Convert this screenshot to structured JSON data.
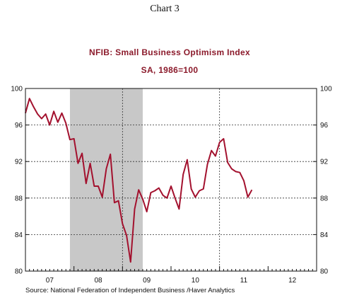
{
  "chart_label": "Chart 3",
  "chart_data": {
    "type": "line",
    "title": "NFIB: Small Business Optimism Index",
    "subtitle": "SA, 1986=100",
    "source": "Source:  National Federation of Independent Business /Haver Analytics",
    "xlabel": "",
    "ylabel": "",
    "ylim": [
      80,
      100
    ],
    "yticks": [
      80,
      84,
      88,
      92,
      96,
      100
    ],
    "ytick_labels": [
      "80",
      "84",
      "88",
      "92",
      "96",
      "100"
    ],
    "x_range": [
      "2007-01",
      "2012-12"
    ],
    "x_tick_labels": [
      {
        "label": "07",
        "year": 2007
      },
      {
        "label": "08",
        "year": 2008
      },
      {
        "label": "09",
        "year": 2009
      },
      {
        "label": "10",
        "year": 2010
      },
      {
        "label": "11",
        "year": 2011
      },
      {
        "label": "12",
        "year": 2012
      }
    ],
    "vertical_gridlines_at": [
      "2009-01",
      "2011-01"
    ],
    "grid": "dashed",
    "recession_shading": {
      "start": "2007-12",
      "end": "2009-06",
      "color": "#c8c8c8"
    },
    "line_color": "#a3112e",
    "series": [
      {
        "x": [
          "2007-01",
          "2007-02",
          "2007-03",
          "2007-04",
          "2007-05",
          "2007-06",
          "2007-07",
          "2007-08",
          "2007-09",
          "2007-10",
          "2007-11",
          "2007-12",
          "2008-01",
          "2008-02",
          "2008-03",
          "2008-04",
          "2008-05",
          "2008-06",
          "2008-07",
          "2008-08",
          "2008-09",
          "2008-10",
          "2008-11",
          "2008-12",
          "2009-01",
          "2009-02",
          "2009-03",
          "2009-04",
          "2009-05",
          "2009-06",
          "2009-07",
          "2009-08",
          "2009-09",
          "2009-10",
          "2009-11",
          "2009-12",
          "2010-01",
          "2010-02",
          "2010-03",
          "2010-04",
          "2010-05",
          "2010-06",
          "2010-07",
          "2010-08",
          "2010-09",
          "2010-10",
          "2010-11",
          "2010-12",
          "2011-01",
          "2011-02",
          "2011-03",
          "2011-04",
          "2011-05",
          "2011-06",
          "2011-07",
          "2011-08",
          "2011-09"
        ],
        "values": [
          97.3,
          98.9,
          98.0,
          97.2,
          96.7,
          97.2,
          96.0,
          97.5,
          96.3,
          97.3,
          96.2,
          94.4,
          94.5,
          91.8,
          92.9,
          89.6,
          91.8,
          89.3,
          89.3,
          88.1,
          91.2,
          92.8,
          87.5,
          87.7,
          85.2,
          83.9,
          81.0,
          86.8,
          88.9,
          87.9,
          86.5,
          88.6,
          88.8,
          89.1,
          88.3,
          88.0,
          89.3,
          88.0,
          86.8,
          90.6,
          92.2,
          89.0,
          88.1,
          88.8,
          89.0,
          91.7,
          93.2,
          92.6,
          94.1,
          94.5,
          91.9,
          91.2,
          90.9,
          90.8,
          89.9,
          88.1,
          88.9
        ]
      }
    ]
  }
}
